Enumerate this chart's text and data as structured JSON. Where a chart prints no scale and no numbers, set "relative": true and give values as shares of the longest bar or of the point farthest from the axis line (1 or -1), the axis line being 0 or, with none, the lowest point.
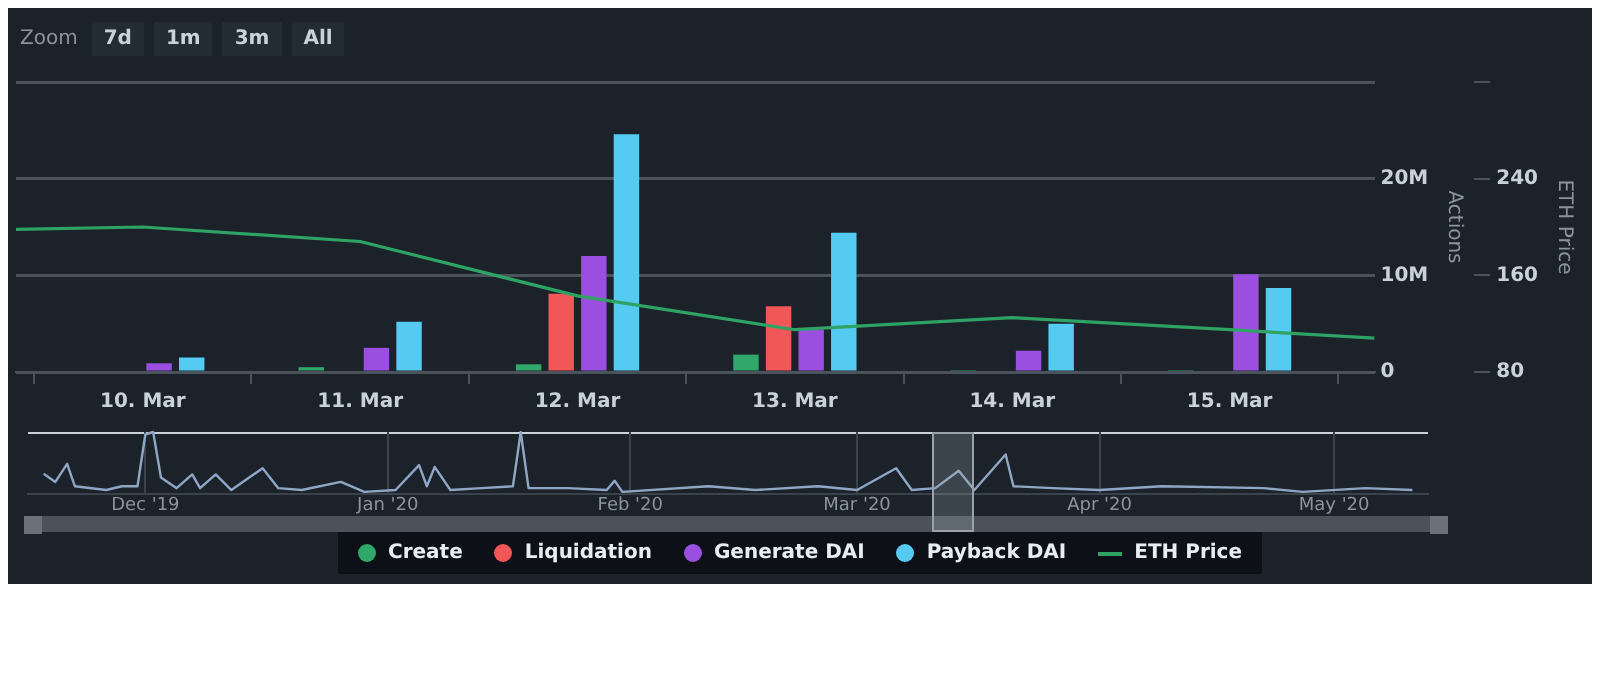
{
  "chart_data": [
    {
      "type": "bar",
      "annotations": [
        "Zoom",
        "7d",
        "1m",
        "3m",
        "All"
      ],
      "ylabel": "Actions",
      "y2label": "ETH Price",
      "x": [
        "2020-03-10",
        "2020-03-11",
        "2020-03-12",
        "2020-03-13",
        "2020-03-14",
        "2020-03-15"
      ],
      "xlim": [
        "2020-03-09T10:00",
        "2020-03-15T16:00"
      ],
      "xticks": [
        {
          "value": "2020-03-10",
          "label": "10. Mar"
        },
        {
          "value": "2020-03-11",
          "label": "11. Mar"
        },
        {
          "value": "2020-03-12",
          "label": "12. Mar"
        },
        {
          "value": "2020-03-13",
          "label": "13. Mar"
        },
        {
          "value": "2020-03-14",
          "label": "14. Mar"
        },
        {
          "value": "2020-03-15",
          "label": "15. Mar"
        }
      ],
      "ylim": [
        0,
        30000000
      ],
      "yticks": [
        0,
        {
          "value": 10000000,
          "label": "10M"
        },
        {
          "value": 20000000,
          "label": "20M"
        },
        {
          "value": 30000000,
          "label": null
        }
      ],
      "y2lim": [
        80,
        320
      ],
      "y2ticks": [
        80,
        160,
        240,
        {
          "value": 320,
          "label": null
        }
      ],
      "grid": "y",
      "legend": "bottom",
      "series": [
        {
          "name": "Create",
          "color": "#2fa86a",
          "values": [
            0,
            500000,
            800000,
            1800000,
            200000,
            200000
          ]
        },
        {
          "name": "Liquidation",
          "color": "#f25757",
          "values": [
            0,
            0,
            8100000,
            6800000,
            0,
            0
          ]
        },
        {
          "name": "Generate DAI",
          "color": "#9b4fe0",
          "values": [
            900000,
            2500000,
            12000000,
            4400000,
            2200000,
            10100000
          ]
        },
        {
          "name": "Payback DAI",
          "color": "#56cbf2",
          "values": [
            1500000,
            5200000,
            24600000,
            14400000,
            5000000,
            8700000
          ]
        },
        {
          "name": "ETH Price",
          "type": "line",
          "axis": "y2",
          "color": "#2ea363",
          "x": [
            "2020-03-09T10:00",
            "2020-03-10",
            "2020-03-11",
            "2020-03-12",
            "2020-03-13",
            "2020-03-14",
            "2020-03-15",
            "2020-03-15T16:00"
          ],
          "values": [
            198,
            200,
            188,
            143,
            115,
            125,
            115,
            108
          ]
        }
      ]
    },
    {
      "type": "line",
      "relative": true,
      "grid": "x",
      "tick_labels": "x",
      "xlim": [
        "2019-11-16",
        "2020-05-13"
      ],
      "xticks": [
        {
          "value": "2019-12-01",
          "label": "Dec '19"
        },
        {
          "value": "2020-01-01",
          "label": "Jan '20"
        },
        {
          "value": "2020-02-01",
          "label": "Feb '20"
        },
        {
          "value": "2020-03-01",
          "label": "Mar '20"
        },
        {
          "value": "2020-04-01",
          "label": "Apr '20"
        },
        {
          "value": "2020-05-01",
          "label": "May '20"
        }
      ],
      "series": [
        {
          "color": "#8fa6c4",
          "x": [
            "2019-11-18",
            "2019-11-19T12:00",
            "2019-11-21",
            "2019-11-22",
            "2019-11-26",
            "2019-11-28",
            "2019-11-30",
            "2019-12-01",
            "2019-12-02",
            "2019-12-03",
            "2019-12-05",
            "2019-12-07",
            "2019-12-08",
            "2019-12-10",
            "2019-12-12",
            "2019-12-16",
            "2019-12-18",
            "2019-12-21",
            "2019-12-26",
            "2019-12-29",
            "2020-01-02",
            "2020-01-05",
            "2020-01-06",
            "2020-01-07",
            "2020-01-09",
            "2020-01-13",
            "2020-01-17",
            "2020-01-18",
            "2020-01-19",
            "2020-01-24",
            "2020-01-29",
            "2020-01-30",
            "2020-01-31",
            "2020-02-11",
            "2020-02-17",
            "2020-02-25",
            "2020-03-01",
            "2020-03-06",
            "2020-03-08",
            "2020-03-11",
            "2020-03-14",
            "2020-03-16",
            "2020-03-20",
            "2020-03-21",
            "2020-03-26",
            "2020-04-01",
            "2020-04-09",
            "2020-04-22",
            "2020-04-27",
            "2020-05-05",
            "2020-05-11"
          ],
          "values": [
            0.33,
            0.2,
            0.49,
            0.13,
            0.07,
            0.13,
            0.13,
            0.96,
            1.0,
            0.27,
            0.1,
            0.32,
            0.1,
            0.32,
            0.07,
            0.42,
            0.1,
            0.07,
            0.2,
            0.04,
            0.07,
            0.47,
            0.13,
            0.44,
            0.07,
            0.1,
            0.13,
            1.0,
            0.1,
            0.1,
            0.07,
            0.22,
            0.04,
            0.13,
            0.07,
            0.13,
            0.07,
            0.42,
            0.07,
            0.1,
            0.38,
            0.07,
            0.64,
            0.13,
            0.1,
            0.07,
            0.13,
            0.1,
            0.04,
            0.1,
            0.07
          ]
        }
      ]
    }
  ]
}
